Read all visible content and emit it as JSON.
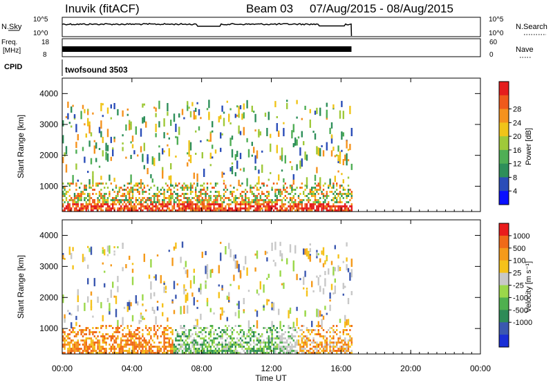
{
  "header": {
    "station": "Inuvik (fitACF)",
    "beam": "Beam 03",
    "date_range": "07/Aug/2015 - 08/Aug/2015"
  },
  "top_panels": {
    "nsky_label": "N.Sky",
    "nsky_ticks": [
      "10^5",
      "10^0"
    ],
    "nsearch_label": "N.Search",
    "nsearch_ticks": [
      "10^5",
      "10^0"
    ],
    "freq_label": "Freq.",
    "freq_unit": "[MHz]",
    "freq_ticks": [
      "18",
      "8"
    ],
    "nave_label": "Nave",
    "nave_ticks": [
      "60",
      "0"
    ],
    "cpid_label": "CPID",
    "cpid_value": "twofsound 3503"
  },
  "chart_data": [
    {
      "type": "heatmap",
      "parameter": "Power",
      "ylabel": "Slant Range [km]",
      "xlabel": "",
      "x_ticks": [
        "00:00",
        "04:00",
        "08:00",
        "12:00",
        "16:00",
        "20:00",
        "00:00"
      ],
      "xlim_hours": [
        0,
        24
      ],
      "y_ticks": [
        1000,
        2000,
        3000,
        4000
      ],
      "ylim": [
        180,
        4500
      ],
      "data_end_hour": 16.6,
      "colorbar_label": "Power [dB]",
      "colorbar_ticks": [
        "4",
        "8",
        "12",
        "16",
        "20",
        "24",
        "28"
      ],
      "colorbar_colors": [
        "#0a10ff",
        "#2a4db8",
        "#2e8f5a",
        "#4fae55",
        "#9fc93a",
        "#f0c419",
        "#f5921e",
        "#ef5a1b",
        "#e51d1d"
      ]
    },
    {
      "type": "heatmap",
      "parameter": "Velocity",
      "ylabel": "Slant Range [km]",
      "xlabel": "Time UT",
      "x_ticks": [
        "00:00",
        "04:00",
        "08:00",
        "12:00",
        "16:00",
        "20:00",
        "00:00"
      ],
      "xlim_hours": [
        0,
        24
      ],
      "y_ticks": [
        1000,
        2000,
        3000,
        4000
      ],
      "ylim": [
        180,
        4500
      ],
      "data_end_hour": 16.6,
      "colorbar_label": "Velocity [m s⁻¹]",
      "colorbar_ticks": [
        "1000",
        "500",
        "100",
        "25",
        "-25",
        "-100",
        "-500",
        "-1000"
      ],
      "colorbar_colors": [
        "#1a2fd6",
        "#3b58b0",
        "#2e8b57",
        "#4fb04f",
        "#9bd84a",
        "#c8c8c8",
        "#f5c21a",
        "#f59a1a",
        "#f06a18",
        "#ea1c1c"
      ]
    }
  ]
}
